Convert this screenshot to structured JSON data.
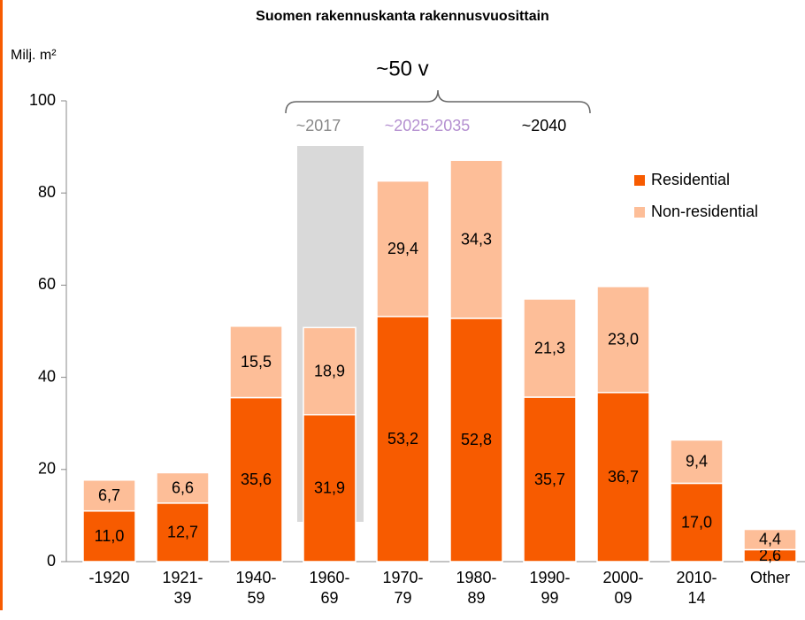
{
  "chart_data": {
    "type": "bar",
    "stacked": true,
    "title": "Suomen rakennuskanta rakennusvuosittain",
    "y_label": "Milj. m²",
    "annotations": {
      "span": "~50 v",
      "a": "~2017",
      "b": "~2025-2035",
      "c": "~2040"
    },
    "categories": [
      "-1920",
      "1921-\n39",
      "1940-\n59",
      "1960-\n69",
      "1970-\n79",
      "1980-\n89",
      "1990-\n99",
      "2000-\n09",
      "2010-\n14",
      "Other"
    ],
    "series": [
      {
        "name": "Residential",
        "color": "#f75b00",
        "values": [
          11.0,
          12.7,
          35.6,
          31.9,
          53.2,
          52.8,
          35.7,
          36.7,
          17.0,
          2.6
        ],
        "value_labels": [
          "11,0",
          "12,7",
          "35,6",
          "31,9",
          "53,2",
          "52,8",
          "35,7",
          "36,7",
          "17,0",
          "2,6"
        ]
      },
      {
        "name": "Non-residential",
        "color": "#fdbe98",
        "values": [
          6.7,
          6.6,
          15.5,
          18.9,
          29.4,
          34.3,
          21.3,
          23.0,
          9.4,
          4.4
        ],
        "value_labels": [
          "6,7",
          "6,6",
          "15,5",
          "18,9",
          "29,4",
          "34,3",
          "21,3",
          "23,0",
          "9,4",
          "4,4"
        ]
      }
    ],
    "ylim": [
      0,
      100
    ],
    "yticks": [
      0,
      20,
      40,
      60,
      80,
      100
    ],
    "grid": false,
    "legend": "top-right"
  }
}
